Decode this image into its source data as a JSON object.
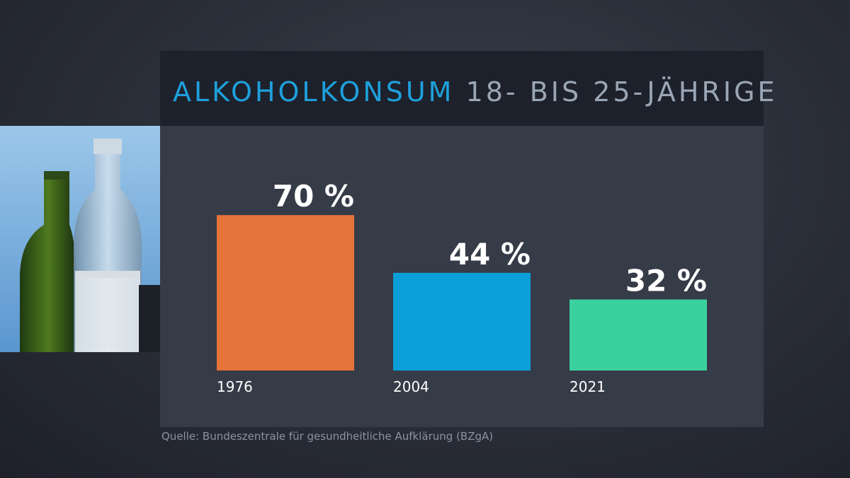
{
  "chart_data": {
    "type": "bar",
    "title": "ALKOHOLKONSUM",
    "subtitle": "18- BIS 25-JÄHRIGE",
    "categories": [
      "1976",
      "2004",
      "2021"
    ],
    "values": [
      70,
      44,
      32
    ],
    "value_labels": [
      "70 %",
      "44 %",
      "32 %"
    ],
    "colors": [
      "#e5733a",
      "#0b9fd9",
      "#3bd19f"
    ],
    "ylim": [
      0,
      100
    ],
    "grid": false,
    "legend": "none"
  },
  "source": "Quelle: Bundeszentrale für gesundheitliche Aufklärung (BZgA)",
  "image": {
    "depicts": "photo of beer and liquor bottles against blue sky"
  }
}
